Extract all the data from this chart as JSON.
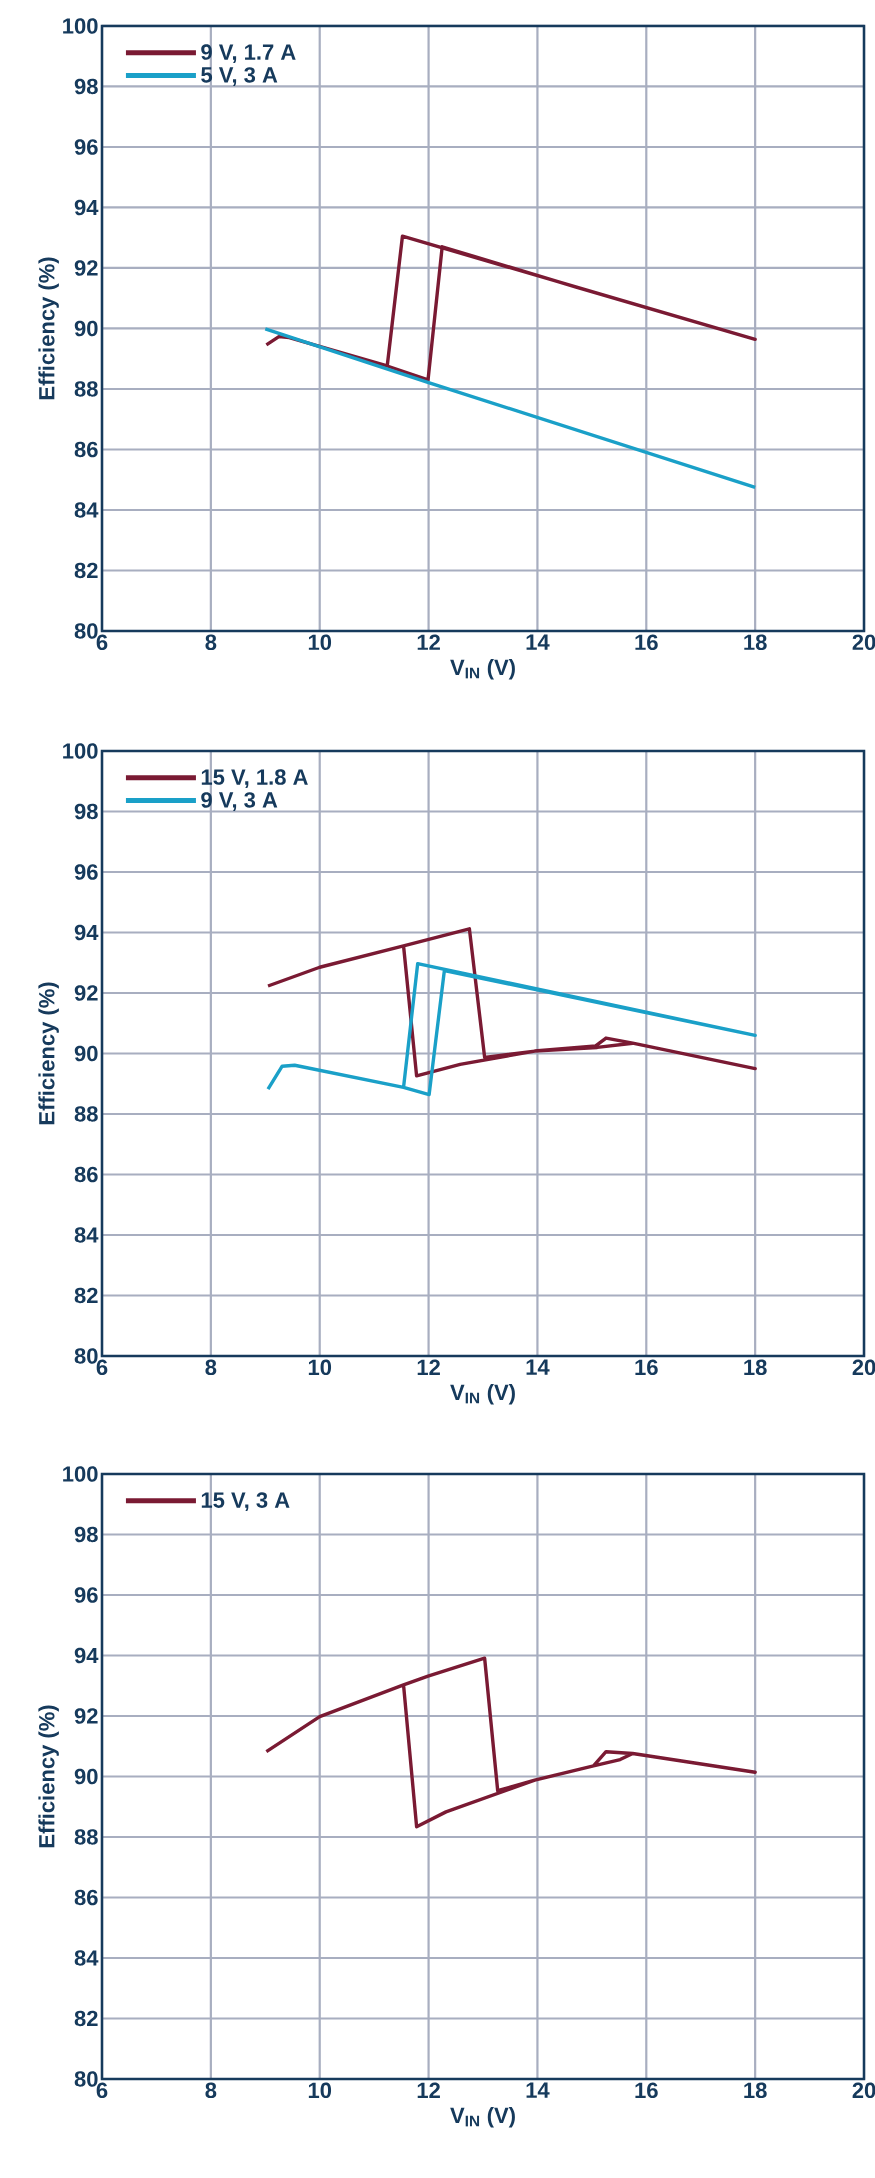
{
  "chart_data": [
    {
      "type": "line",
      "xlabel": "V$_{IN}$ (V)",
      "ylabel": "Efficiency (%)",
      "xlim": [
        6,
        20
      ],
      "ylim": [
        80,
        100
      ],
      "xticks": [
        6,
        8,
        10,
        12,
        14,
        16,
        18,
        20
      ],
      "yticks": [
        80,
        82,
        84,
        86,
        88,
        90,
        92,
        94,
        96,
        98,
        100
      ],
      "grid": true,
      "legend": "top left",
      "line_style": "solid",
      "series": [
        {
          "name": "9 V, 1.7 A",
          "color": "#7a1a33",
          "x": [
            9.02,
            9.25,
            9.44,
            11.24,
            11.99,
            12.25,
            14.71,
            18.0,
            11.52,
            11.24
          ],
          "values": [
            89.46,
            89.73,
            89.7,
            88.76,
            88.3,
            92.7,
            91.37,
            89.64,
            93.05,
            88.76
          ]
        },
        {
          "name": "5 V, 3 A",
          "color": "#1aa0c8",
          "x": [
            9.0,
            12.0,
            18.0
          ],
          "values": [
            89.99,
            88.21,
            84.75
          ]
        }
      ]
    },
    {
      "type": "line",
      "xlabel": "V$_{IN}$ (V)",
      "ylabel": "Efficiency (%)",
      "xlim": [
        6,
        20
      ],
      "ylim": [
        80,
        100
      ],
      "xticks": [
        6,
        8,
        10,
        12,
        14,
        16,
        18,
        20
      ],
      "yticks": [
        80,
        82,
        84,
        86,
        88,
        90,
        92,
        94,
        96,
        98,
        100
      ],
      "grid": true,
      "legend": "top left",
      "line_style": "solid",
      "series": [
        {
          "name": "15 V, 1.8 A",
          "color": "#7a1a33",
          "x": [
            9.05,
            10.0,
            11.54,
            12.75,
            13.03,
            13.95,
            15.07,
            15.26,
            15.75,
            18.0,
            15.75,
            15.1,
            13.95,
            12.58,
            11.78,
            11.54
          ],
          "values": [
            92.23,
            92.85,
            93.56,
            94.12,
            89.87,
            90.08,
            90.25,
            90.51,
            90.34,
            89.5,
            90.34,
            90.2,
            90.08,
            89.64,
            89.26,
            93.56
          ]
        },
        {
          "name": "9 V, 3 A",
          "color": "#1aa0c8",
          "x": [
            9.05,
            9.31,
            9.54,
            11.54,
            12.01,
            12.29,
            18.0,
            11.8,
            11.54
          ],
          "values": [
            88.82,
            89.58,
            89.61,
            88.88,
            88.64,
            92.74,
            90.6,
            92.97,
            88.88
          ]
        }
      ]
    },
    {
      "type": "line",
      "xlabel": "V$_{IN}$ (V)",
      "ylabel": "Efficiency (%)",
      "xlim": [
        6,
        20
      ],
      "ylim": [
        80,
        100
      ],
      "xticks": [
        6,
        8,
        10,
        12,
        14,
        16,
        18,
        20
      ],
      "yticks": [
        80,
        82,
        84,
        86,
        88,
        90,
        92,
        94,
        96,
        98,
        100
      ],
      "grid": true,
      "legend": "top left",
      "line_style": "solid",
      "series": [
        {
          "name": "15 V, 3 A",
          "color": "#7a1a33",
          "x": [
            9.02,
            10.0,
            11.54,
            11.99,
            13.03,
            13.27,
            13.95,
            15.03,
            15.26,
            15.75,
            18.0,
            15.75,
            15.52,
            15.03,
            13.95,
            12.32,
            11.78,
            11.54
          ],
          "values": [
            90.82,
            91.98,
            93.03,
            93.32,
            93.91,
            89.53,
            89.88,
            90.35,
            90.82,
            90.76,
            90.14,
            90.76,
            90.56,
            90.35,
            89.88,
            88.83,
            88.34,
            93.03
          ]
        }
      ]
    }
  ]
}
